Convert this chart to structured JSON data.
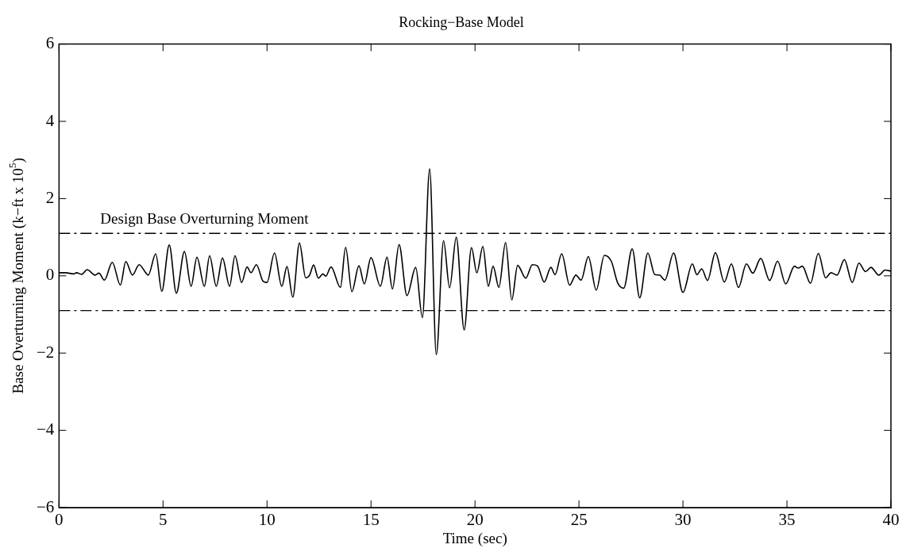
{
  "chart_data": {
    "type": "line",
    "title": "Rocking−Base Model",
    "xlabel": "Time (sec)",
    "ylabel": "Base Overturning Moment (k−ft x 10$^{5}$)",
    "xlim": [
      0,
      40
    ],
    "xticks": [
      0,
      5,
      10,
      15,
      20,
      25,
      30,
      35,
      40
    ],
    "ylim": [
      -6,
      6
    ],
    "yticks": [
      -6,
      -4,
      -2,
      0,
      2,
      4,
      6
    ],
    "grid": false,
    "legend": false,
    "marker": "none",
    "ref_lines": [
      {
        "axis": "y",
        "value": 1.1,
        "label": "Design Base Overturning Moment",
        "color": "#000000",
        "line_style": "dashed"
      },
      {
        "axis": "y",
        "value": -0.9,
        "label": null,
        "color": "#000000",
        "line_style": "dashed"
      }
    ],
    "series": [
      {
        "color": "#000000",
        "line_style": "solid",
        "x": [
          0,
          0.32,
          0.7,
          0.84,
          1.09,
          1.35,
          1.73,
          1.92,
          2.18,
          2.56,
          2.95,
          3.21,
          3.53,
          3.85,
          4.17,
          4.29,
          4.65,
          4.94,
          5.3,
          5.64,
          6.03,
          6.35,
          6.63,
          6.99,
          7.24,
          7.56,
          7.86,
          8.2,
          8.46,
          8.78,
          9.04,
          9.23,
          9.49,
          9.81,
          10.0,
          10.36,
          10.71,
          10.96,
          11.24,
          11.56,
          11.86,
          12.05,
          12.24,
          12.47,
          12.69,
          12.82,
          13.08,
          13.53,
          13.78,
          14.08,
          14.42,
          14.68,
          15.0,
          15.45,
          15.77,
          16.03,
          16.35,
          16.73,
          17.15,
          17.47,
          17.82,
          18.14,
          18.49,
          18.78,
          19.1,
          19.48,
          19.83,
          20.09,
          20.38,
          20.64,
          20.87,
          21.15,
          21.47,
          21.77,
          22.05,
          22.44,
          22.76,
          23.0,
          23.33,
          23.65,
          23.85,
          24.17,
          24.55,
          24.85,
          25.1,
          25.45,
          25.83,
          26.22,
          26.56,
          26.86,
          27.15,
          27.56,
          27.92,
          28.31,
          28.65,
          28.87,
          29.13,
          29.55,
          30.0,
          30.45,
          30.67,
          30.9,
          31.18,
          31.56,
          31.99,
          32.33,
          32.67,
          33.05,
          33.36,
          33.74,
          34.17,
          34.55,
          34.94,
          35.36,
          35.54,
          35.74,
          36.13,
          36.51,
          36.86,
          37.12,
          37.41,
          37.76,
          38.14,
          38.46,
          38.78,
          39.04,
          39.42,
          39.72,
          40.0
        ],
        "values": [
          0.08,
          0.08,
          0.05,
          0.08,
          0.04,
          0.16,
          0.02,
          0.07,
          -0.11,
          0.35,
          -0.24,
          0.37,
          0.02,
          0.29,
          0.08,
          0.02,
          0.57,
          -0.4,
          0.8,
          -0.45,
          0.63,
          -0.27,
          0.48,
          -0.27,
          0.52,
          -0.27,
          0.46,
          -0.27,
          0.52,
          -0.17,
          0.23,
          0.08,
          0.29,
          -0.14,
          -0.17,
          0.59,
          -0.27,
          0.24,
          -0.55,
          0.85,
          -0.05,
          0.02,
          0.28,
          -0.06,
          0.05,
          -0.01,
          0.23,
          -0.3,
          0.74,
          -0.41,
          0.26,
          -0.21,
          0.47,
          -0.27,
          0.48,
          -0.34,
          0.81,
          -0.51,
          0.22,
          -1.08,
          2.77,
          -2.04,
          0.91,
          -0.31,
          1.0,
          -1.4,
          0.73,
          0.08,
          0.76,
          -0.27,
          0.25,
          -0.3,
          0.86,
          -0.62,
          0.27,
          -0.06,
          0.29,
          0.26,
          -0.16,
          0.22,
          0.03,
          0.57,
          -0.24,
          0.02,
          -0.11,
          0.5,
          -0.37,
          0.53,
          0.37,
          -0.18,
          -0.32,
          0.7,
          -0.57,
          0.59,
          0.03,
          0.02,
          -0.11,
          0.59,
          -0.43,
          0.31,
          0.03,
          0.18,
          -0.12,
          0.6,
          -0.16,
          0.31,
          -0.3,
          0.31,
          0.07,
          0.45,
          -0.12,
          0.38,
          -0.21,
          0.25,
          0.2,
          0.25,
          -0.19,
          0.58,
          -0.05,
          0.08,
          0.02,
          0.42,
          -0.17,
          0.33,
          0.11,
          0.22,
          0.02,
          0.15,
          0.12
        ]
      }
    ]
  }
}
